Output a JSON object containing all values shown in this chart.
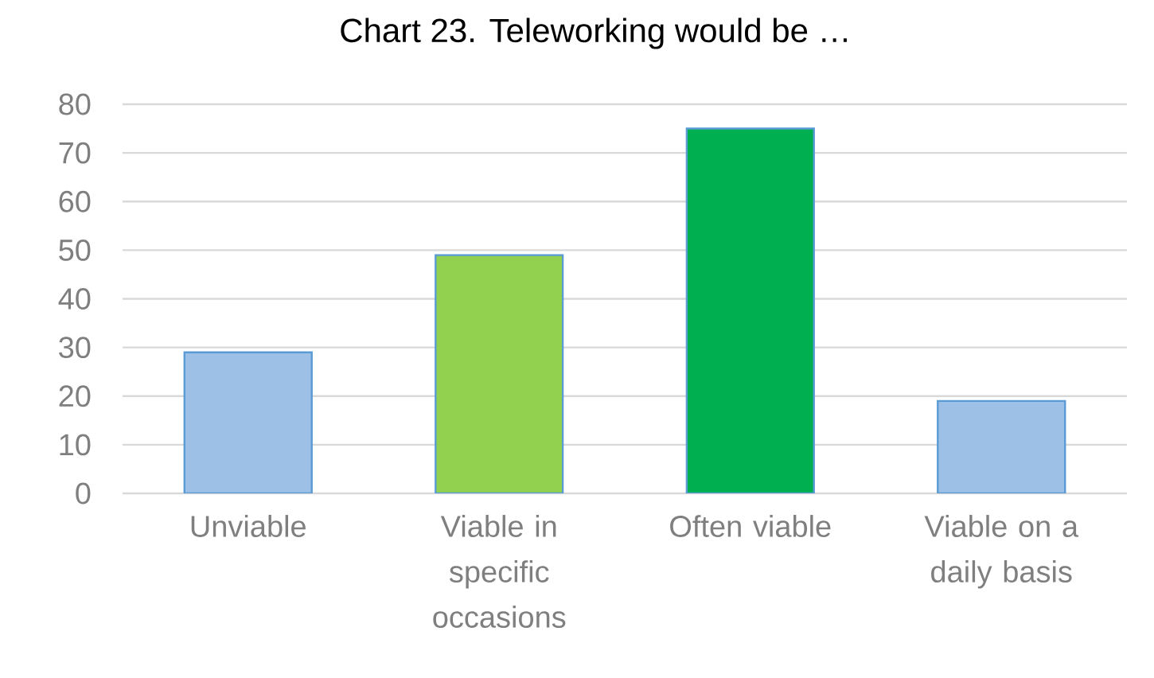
{
  "chart_data": {
    "type": "bar",
    "title": "Chart 23. Teleworking would be …",
    "categories": [
      "Unviable",
      "Viable in specific occasions",
      "Often viable",
      "Viable on a daily basis"
    ],
    "values": [
      29,
      49,
      75,
      19
    ],
    "colors": [
      "#9dc0e6",
      "#92d050",
      "#00b050",
      "#9dc0e6"
    ],
    "ylim": [
      0,
      80
    ],
    "yticks": [
      0,
      10,
      20,
      30,
      40,
      50,
      60,
      70,
      80
    ],
    "grid": "y"
  }
}
